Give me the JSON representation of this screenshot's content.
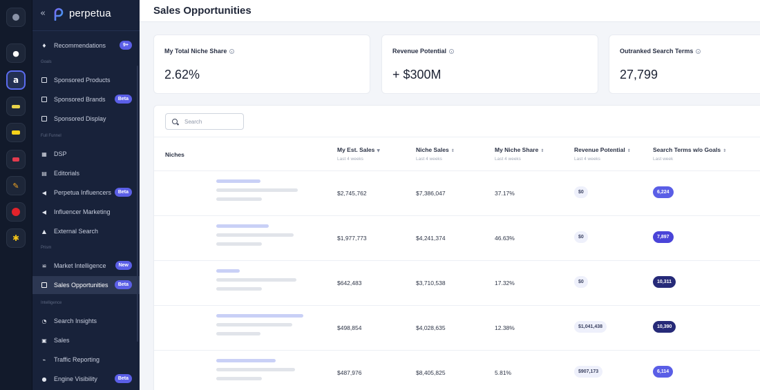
{
  "app": {
    "logo_text": "perpetua"
  },
  "rail": {
    "buttons": [
      {
        "icon": "settings-icon",
        "color": "#8a93a7"
      },
      {
        "icon": "add-icon",
        "color": "#ffffff"
      },
      {
        "icon": "amazon-icon",
        "glyph": "a",
        "color": "#ffffff"
      },
      {
        "icon": "walmart-icon",
        "color": "#e8d34a"
      },
      {
        "icon": "instacart-icon",
        "color": "#f6d21a"
      },
      {
        "icon": "target-icon",
        "color": "#e23b4e"
      },
      {
        "icon": "pen-icon",
        "color": "#f5a623"
      },
      {
        "icon": "record-icon",
        "color": "#e2222a"
      },
      {
        "icon": "spark-icon",
        "color": "#f5c518"
      }
    ]
  },
  "sidebar": {
    "sections": {
      "goals": "Goals",
      "full_funnel": "Full Funnel",
      "prism": "Prism",
      "intelligence": "Intelligence"
    },
    "items": [
      {
        "label": "Recommendations",
        "icon": "lightbulb-icon",
        "badge": "9+"
      },
      {
        "label": "Sponsored Products",
        "icon": "box-icon",
        "badge": ""
      },
      {
        "label": "Sponsored Brands",
        "icon": "brand-icon",
        "badge": "Beta"
      },
      {
        "label": "Sponsored Display",
        "icon": "display-icon",
        "badge": ""
      },
      {
        "label": "DSP",
        "icon": "grid-icon",
        "badge": ""
      },
      {
        "label": "Editorials",
        "icon": "document-icon",
        "badge": ""
      },
      {
        "label": "Perpetua Influencers",
        "icon": "megaphone-icon",
        "badge": "Beta"
      },
      {
        "label": "Influencer Marketing",
        "icon": "megaphone-icon",
        "badge": ""
      },
      {
        "label": "External Search",
        "icon": "arrow-icon",
        "badge": ""
      },
      {
        "label": "Market Intelligence",
        "icon": "chart-icon",
        "badge": "New"
      },
      {
        "label": "Sales Opportunities",
        "icon": "opportunity-icon",
        "badge": "Beta"
      },
      {
        "label": "Search Insights",
        "icon": "insights-icon",
        "badge": ""
      },
      {
        "label": "Sales",
        "icon": "sales-icon",
        "badge": ""
      },
      {
        "label": "Traffic Reporting",
        "icon": "traffic-icon",
        "badge": ""
      },
      {
        "label": "Engine Visibility",
        "icon": "pin-icon",
        "badge": "Beta"
      }
    ],
    "active": "Sales Opportunities"
  },
  "main": {
    "title": "Sales Opportunities",
    "cards": [
      {
        "title": "My Total Niche Share",
        "value": "2.62%"
      },
      {
        "title": "Revenue Potential",
        "value": "+ $300M"
      },
      {
        "title": "Outranked Search Terms",
        "value": "27,799"
      }
    ],
    "search": {
      "placeholder": "Search"
    },
    "columns": [
      {
        "label": "Niches",
        "sub": "",
        "sort": ""
      },
      {
        "label": "My Est. Sales",
        "sub": "Last 4 weeks",
        "sort": "▼"
      },
      {
        "label": "Niche Sales",
        "sub": "Last 4 weeks",
        "sort": "⇕"
      },
      {
        "label": "My Niche Share",
        "sub": "Last 4 weeks",
        "sort": "⇕"
      },
      {
        "label": "Revenue Potential",
        "sub": "Last 4 weeks",
        "sort": "⇕"
      },
      {
        "label": "Search Terms w/o Goals",
        "sub": "Last week",
        "sort": "⇕"
      }
    ],
    "rows": [
      {
        "est_sales": "$2,745,762",
        "niche_sales": "$7,386,047",
        "share": "37.17%",
        "revenue": "$0",
        "terms": "6,224",
        "terms_color": "#5a5ee6"
      },
      {
        "est_sales": "$1,977,773",
        "niche_sales": "$4,241,374",
        "share": "46.63%",
        "revenue": "$0",
        "terms": "7,897",
        "terms_color": "#4a44d8"
      },
      {
        "est_sales": "$642,483",
        "niche_sales": "$3,710,538",
        "share": "17.32%",
        "revenue": "$0",
        "terms": "10,311",
        "terms_color": "#262a78"
      },
      {
        "est_sales": "$498,854",
        "niche_sales": "$4,028,635",
        "share": "12.38%",
        "revenue": "$1,041,438",
        "terms": "10,390",
        "terms_color": "#262a78"
      },
      {
        "est_sales": "$487,976",
        "niche_sales": "$8,405,825",
        "share": "5.81%",
        "revenue": "$907,173",
        "terms": "6,114",
        "terms_color": "#5a5ee6"
      }
    ]
  }
}
